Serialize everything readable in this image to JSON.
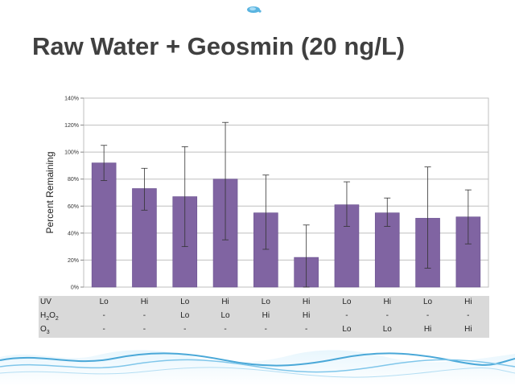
{
  "slide": {
    "title": "Raw Water + Geosmin (20 ng/L)",
    "logo_icon": "water-drop-icon",
    "footer_decoration": "water-waves"
  },
  "colors": {
    "bar": "#8064a2",
    "bar_edge": "#6a5290",
    "table_bg": "#d9d9d9",
    "title": "#404040"
  },
  "chart_data": {
    "type": "bar",
    "ylabel": "Percent Remaining",
    "xlabel": "",
    "ylim": [
      0,
      140
    ],
    "y_ticks": [
      0,
      20,
      40,
      60,
      80,
      100,
      120,
      140
    ],
    "y_tick_labels": [
      "0%",
      "20%",
      "40%",
      "60%",
      "80%",
      "100%",
      "120%",
      "140%"
    ],
    "grid": true,
    "legend": "none",
    "categories": [
      "UV Lo",
      "UV Hi",
      "UV Lo / H2O2 Lo",
      "UV Hi / H2O2 Lo",
      "UV Lo / H2O2 Hi",
      "UV Hi / H2O2 Hi",
      "UV Lo / O3 Lo",
      "UV Hi / O3 Lo",
      "UV Lo / O3 Hi",
      "UV Hi / O3 Hi"
    ],
    "values": [
      92,
      73,
      67,
      80,
      55,
      22,
      61,
      55,
      51,
      52
    ],
    "error_low": [
      79,
      57,
      30,
      35,
      28,
      0,
      45,
      45,
      14,
      32
    ],
    "error_high": [
      105,
      88,
      104,
      122,
      83,
      46,
      78,
      66,
      89,
      72
    ]
  },
  "table": {
    "rows": [
      {
        "label": "UV",
        "cells": [
          "Lo",
          "Hi",
          "Lo",
          "Hi",
          "Lo",
          "Hi",
          "Lo",
          "Hi",
          "Lo",
          "Hi"
        ]
      },
      {
        "label": "H2O2",
        "label_main": "H",
        "label_sub1": "2",
        "label_mid": "O",
        "label_sub2": "2",
        "cells": [
          "-",
          "-",
          "Lo",
          "Lo",
          "Hi",
          "Hi",
          "-",
          "-",
          "-",
          "-"
        ]
      },
      {
        "label": "O3",
        "label_main": "O",
        "label_sub1": "3",
        "cells": [
          "-",
          "-",
          "-",
          "-",
          "-",
          "-",
          "Lo",
          "Lo",
          "Hi",
          "Hi"
        ]
      }
    ]
  }
}
